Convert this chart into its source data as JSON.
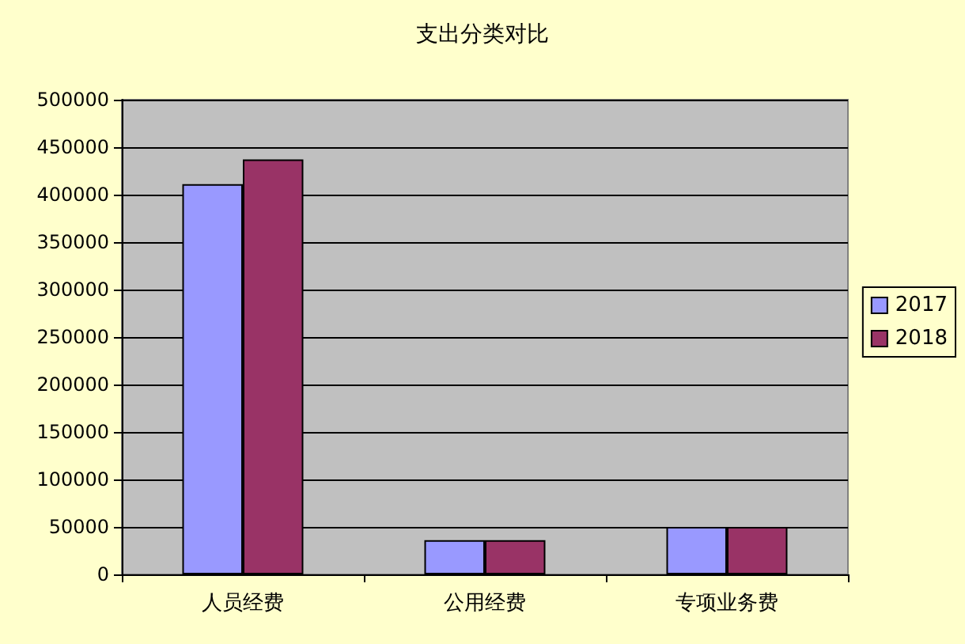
{
  "chart_data": {
    "type": "bar",
    "title": "支出分类对比",
    "categories": [
      "人员经费",
      "公用经费",
      "专项业务费"
    ],
    "series": [
      {
        "name": "2017",
        "color": "#9999ff",
        "values": [
          411000,
          36000,
          50000
        ]
      },
      {
        "name": "2018",
        "color": "#993366",
        "values": [
          437000,
          36000,
          50000
        ]
      }
    ],
    "ylim": [
      0,
      500000
    ],
    "yticks": [
      0,
      50000,
      100000,
      150000,
      200000,
      250000,
      300000,
      350000,
      400000,
      450000,
      500000
    ],
    "grid": "y",
    "legend": "right"
  }
}
